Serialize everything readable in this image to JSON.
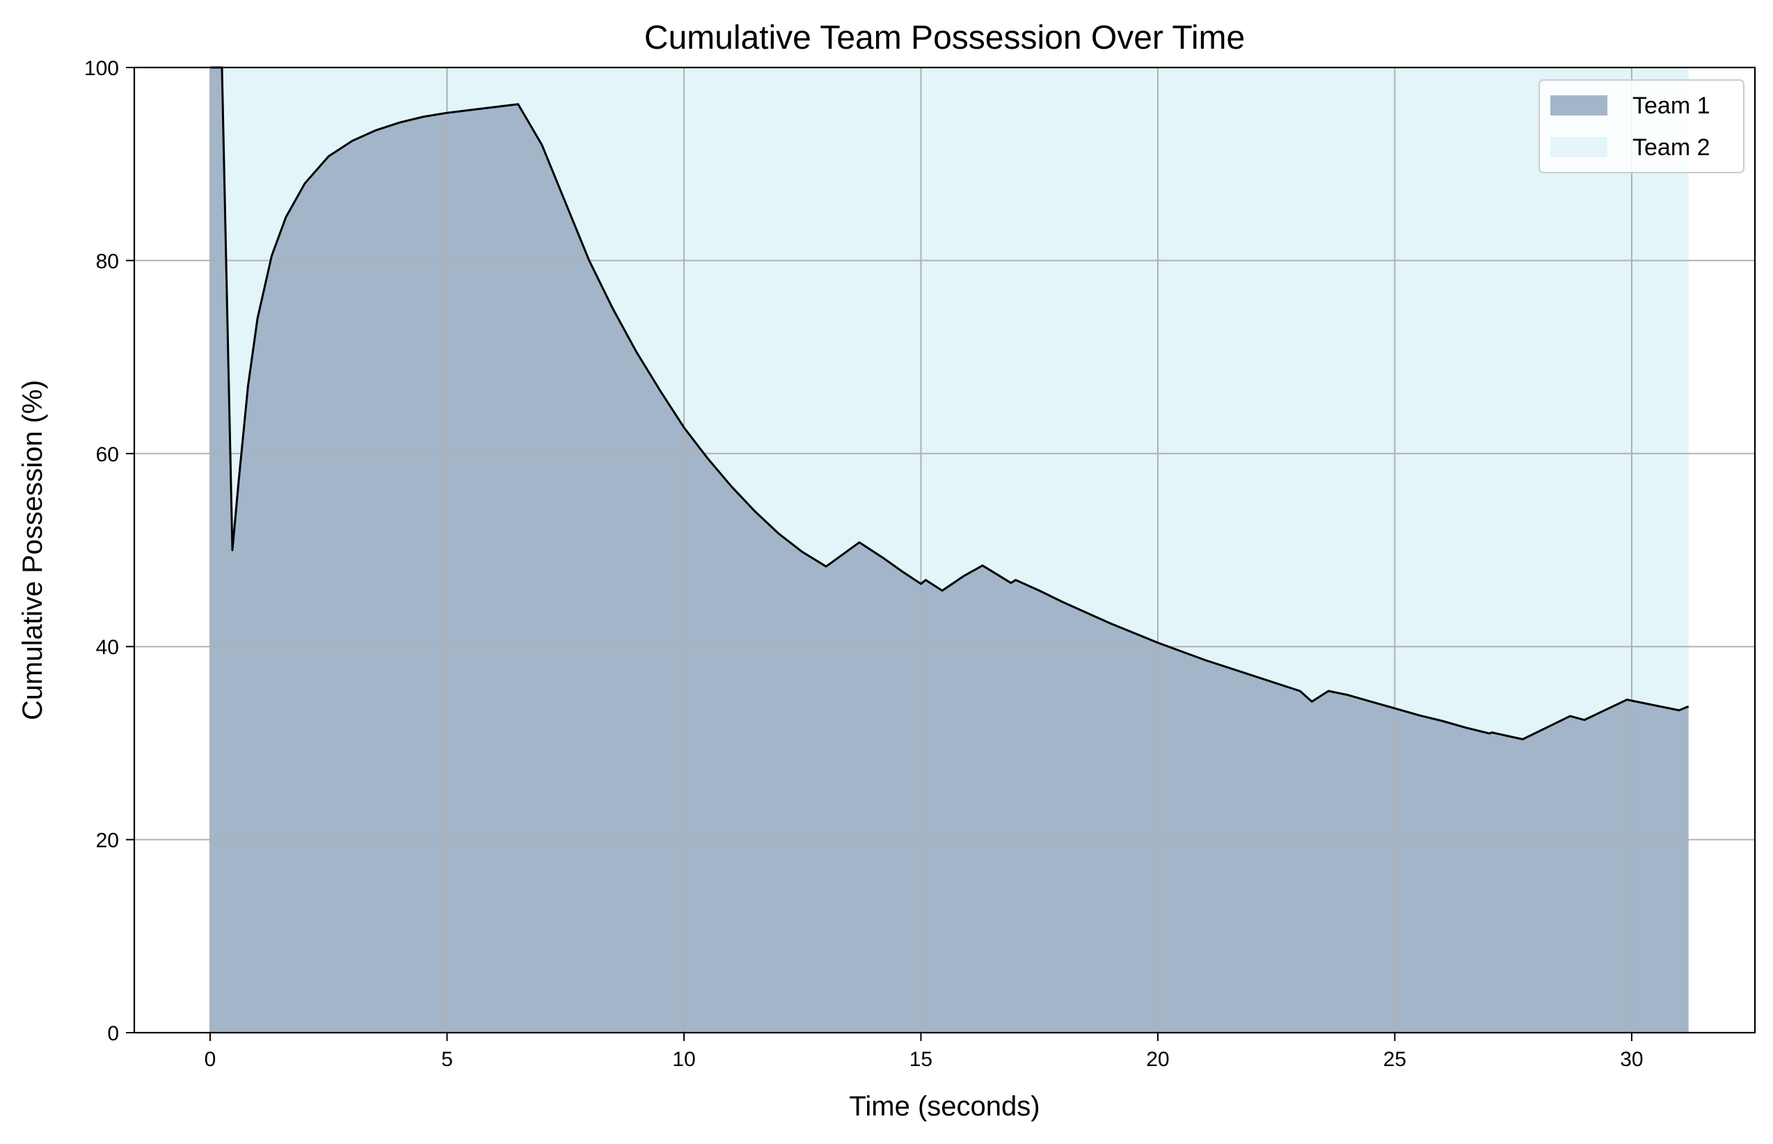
{
  "chart_data": {
    "type": "area",
    "title": "Cumulative Team Possession Over Time",
    "xlabel": "Time (seconds)",
    "ylabel": "Cumulative Possession (%)",
    "xlim": [
      -1.6,
      32.6
    ],
    "ylim": [
      0,
      100
    ],
    "xticks": [
      0,
      5,
      10,
      15,
      20,
      25,
      30
    ],
    "yticks": [
      0,
      20,
      40,
      60,
      80,
      100
    ],
    "grid": true,
    "legend_position": "top-right",
    "colors": {
      "team1": "#a3b5c9",
      "team2": "#e3f5f8",
      "line": "#000000",
      "grid": "#b0b0b0"
    },
    "series": [
      {
        "name": "Team 1",
        "x": [
          0,
          0.25,
          0.47,
          0.6,
          0.8,
          1.0,
          1.3,
          1.6,
          2.0,
          2.5,
          3.0,
          3.5,
          4.0,
          4.5,
          5.0,
          5.5,
          6.0,
          6.5,
          7.0,
          7.5,
          8.0,
          8.5,
          9.0,
          9.5,
          10.0,
          10.5,
          11.0,
          11.5,
          12.0,
          12.5,
          13.0,
          13.7,
          14.2,
          14.6,
          15.0,
          15.1,
          15.45,
          15.9,
          16.3,
          16.9,
          17.0,
          17.5,
          18.0,
          18.5,
          19.0,
          19.5,
          20.0,
          20.5,
          21.0,
          21.5,
          22.0,
          22.5,
          23.0,
          23.25,
          23.6,
          24.0,
          24.5,
          25.0,
          25.5,
          26.0,
          26.5,
          27.0,
          27.05,
          27.7,
          28.7,
          29.0,
          29.9,
          30.6,
          31.0,
          31.2
        ],
        "values": [
          100,
          100,
          50,
          57,
          67,
          74,
          80.5,
          84.5,
          88,
          90.8,
          92.4,
          93.5,
          94.3,
          94.9,
          95.3,
          95.6,
          95.9,
          96.2,
          92,
          86,
          80,
          75,
          70.5,
          66.5,
          62.7,
          59.5,
          56.6,
          54,
          51.7,
          49.8,
          48.3,
          50.8,
          49.2,
          47.8,
          46.5,
          46.9,
          45.8,
          47.3,
          48.4,
          46.6,
          46.9,
          45.8,
          44.6,
          43.5,
          42.4,
          41.4,
          40.4,
          39.5,
          38.6,
          37.8,
          37,
          36.2,
          35.4,
          34.3,
          35.4,
          35,
          34.3,
          33.6,
          32.9,
          32.3,
          31.6,
          31,
          31.1,
          30.4,
          32.8,
          32.4,
          34.5,
          33.8,
          33.4,
          33.8
        ]
      },
      {
        "name": "Team 2"
      }
    ]
  }
}
